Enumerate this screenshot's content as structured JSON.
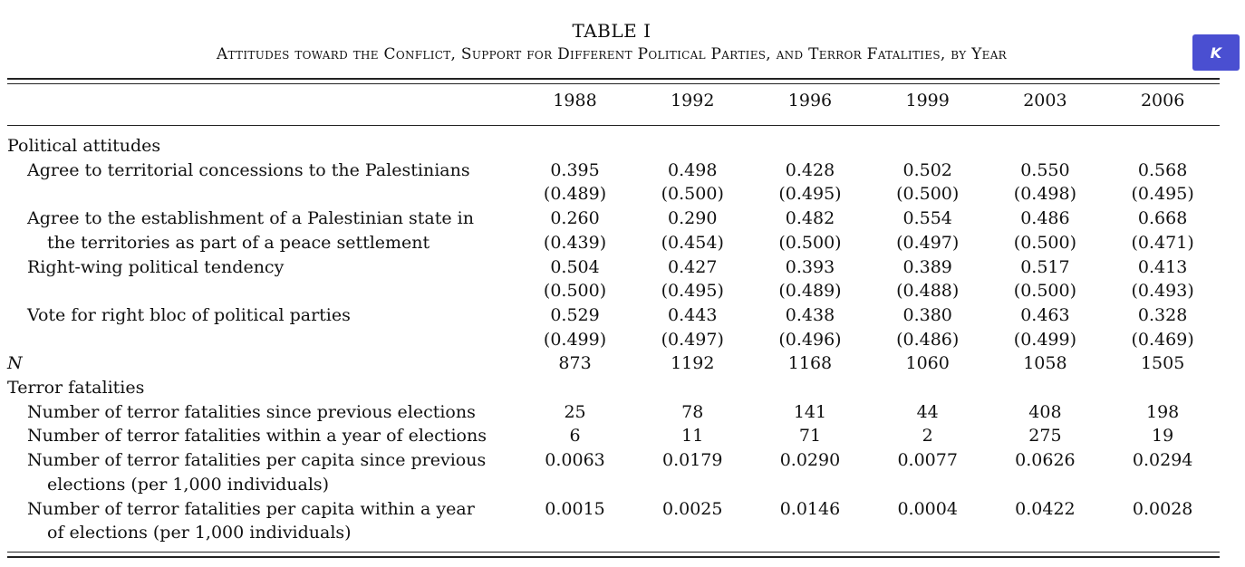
{
  "table": {
    "title": "TABLE I",
    "subtitle": "Attitudes toward the Conflict, Support for Different Political Parties, and Terror Fatalities, by Year",
    "years": [
      "1988",
      "1992",
      "1996",
      "1999",
      "2003",
      "2006"
    ],
    "rows": [
      {
        "label": "Political attitudes",
        "values": [
          "",
          "",
          "",
          "",
          "",
          ""
        ]
      },
      {
        "label": "Agree to territorial concessions to the Palestinians",
        "values": [
          "0.395",
          "0.498",
          "0.428",
          "0.502",
          "0.550",
          "0.568"
        ]
      },
      {
        "label": "",
        "values": [
          "(0.489)",
          "(0.500)",
          "(0.495)",
          "(0.500)",
          "(0.498)",
          "(0.495)"
        ]
      },
      {
        "label": "Agree to the establishment of a Palestinian state in",
        "values": [
          "0.260",
          "0.290",
          "0.482",
          "0.554",
          "0.486",
          "0.668"
        ]
      },
      {
        "label": "the territories as part of a peace settlement",
        "values": [
          "(0.439)",
          "(0.454)",
          "(0.500)",
          "(0.497)",
          "(0.500)",
          "(0.471)"
        ]
      },
      {
        "label": "Right-wing political tendency",
        "values": [
          "0.504",
          "0.427",
          "0.393",
          "0.389",
          "0.517",
          "0.413"
        ]
      },
      {
        "label": "",
        "values": [
          "(0.500)",
          "(0.495)",
          "(0.489)",
          "(0.488)",
          "(0.500)",
          "(0.493)"
        ]
      },
      {
        "label": "Vote for right bloc of political parties",
        "values": [
          "0.529",
          "0.443",
          "0.438",
          "0.380",
          "0.463",
          "0.328"
        ]
      },
      {
        "label": "",
        "values": [
          "(0.499)",
          "(0.497)",
          "(0.496)",
          "(0.486)",
          "(0.499)",
          "(0.469)"
        ]
      },
      {
        "label": "N",
        "values": [
          "873",
          "1192",
          "1168",
          "1060",
          "1058",
          "1505"
        ]
      },
      {
        "label": "Terror fatalities",
        "values": [
          "",
          "",
          "",
          "",
          "",
          ""
        ]
      },
      {
        "label": "Number of terror fatalities since previous elections",
        "values": [
          "25",
          "78",
          "141",
          "44",
          "408",
          "198"
        ]
      },
      {
        "label": "Number of terror fatalities within a year of elections",
        "values": [
          "6",
          "11",
          "71",
          "2",
          "275",
          "19"
        ]
      },
      {
        "label": "Number of terror fatalities per capita since previous",
        "values": [
          "0.0063",
          "0.0179",
          "0.0290",
          "0.0077",
          "0.0626",
          "0.0294"
        ]
      },
      {
        "label": "elections (per 1,000 individuals)",
        "values": [
          "",
          "",
          "",
          "",
          "",
          ""
        ]
      },
      {
        "label": "Number of terror fatalities per capita within a year",
        "values": [
          "0.0015",
          "0.0025",
          "0.0146",
          "0.0004",
          "0.0422",
          "0.0028"
        ]
      },
      {
        "label": "of elections (per 1,000 individuals)",
        "values": [
          "",
          "",
          "",
          "",
          "",
          ""
        ]
      }
    ]
  },
  "badge": {
    "label": "K",
    "color": "#4a4fd1"
  }
}
